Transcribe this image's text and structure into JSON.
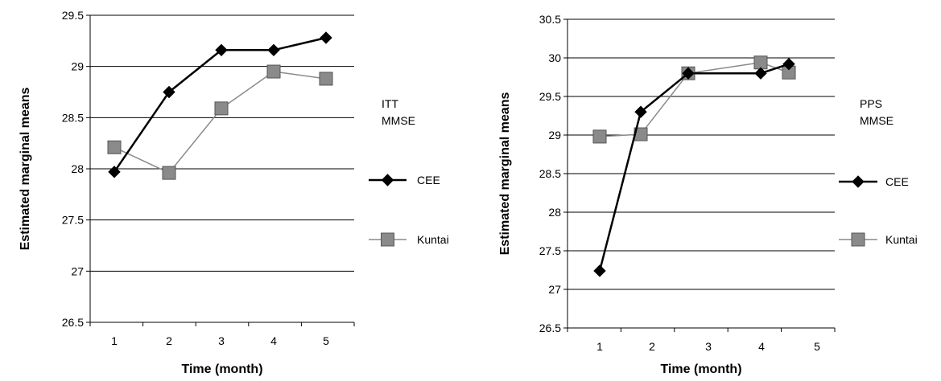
{
  "chart_data": [
    {
      "type": "line",
      "note_lines": [
        "ITT",
        "MMSE"
      ],
      "xlabel": "Time (month)",
      "ylabel": "Estimated marginal means",
      "categories": [
        "1",
        "2",
        "3",
        "4",
        "5"
      ],
      "ylim": [
        26.5,
        29.5
      ],
      "yticks": [
        "26.5",
        "27",
        "27.5",
        "28",
        "28.5",
        "29",
        "29.5"
      ],
      "grid": true,
      "legend_position": "right",
      "series": [
        {
          "name": "CEE",
          "values": [
            27.97,
            28.75,
            29.16,
            29.16,
            29.28
          ],
          "color": "#000000",
          "marker": "diamond"
        },
        {
          "name": "Kuntai",
          "values": [
            28.21,
            27.96,
            28.59,
            28.95,
            28.88
          ],
          "color": "#8a8a8a",
          "marker": "square"
        }
      ]
    },
    {
      "type": "line",
      "note_lines": [
        "PPS",
        "MMSE"
      ],
      "xlabel": "Time (month)",
      "ylabel": "Estimated marginal means",
      "categories": [
        "1",
        "2",
        "3",
        "4",
        "5"
      ],
      "ylim": [
        26.5,
        30.5
      ],
      "yticks": [
        "26.5",
        "27",
        "27.5",
        "28",
        "28.5",
        "29",
        "29.5",
        "30",
        "30.5"
      ],
      "grid": true,
      "legend_position": "right",
      "series": [
        {
          "name": "CEE",
          "values": [
            27.24,
            29.3,
            29.8,
            29.8,
            29.92
          ],
          "color": "#000000",
          "marker": "diamond"
        },
        {
          "name": "Kuntai",
          "values": [
            28.98,
            29.01,
            29.8,
            29.94,
            29.81
          ],
          "color": "#8a8a8a",
          "marker": "square"
        }
      ]
    }
  ]
}
